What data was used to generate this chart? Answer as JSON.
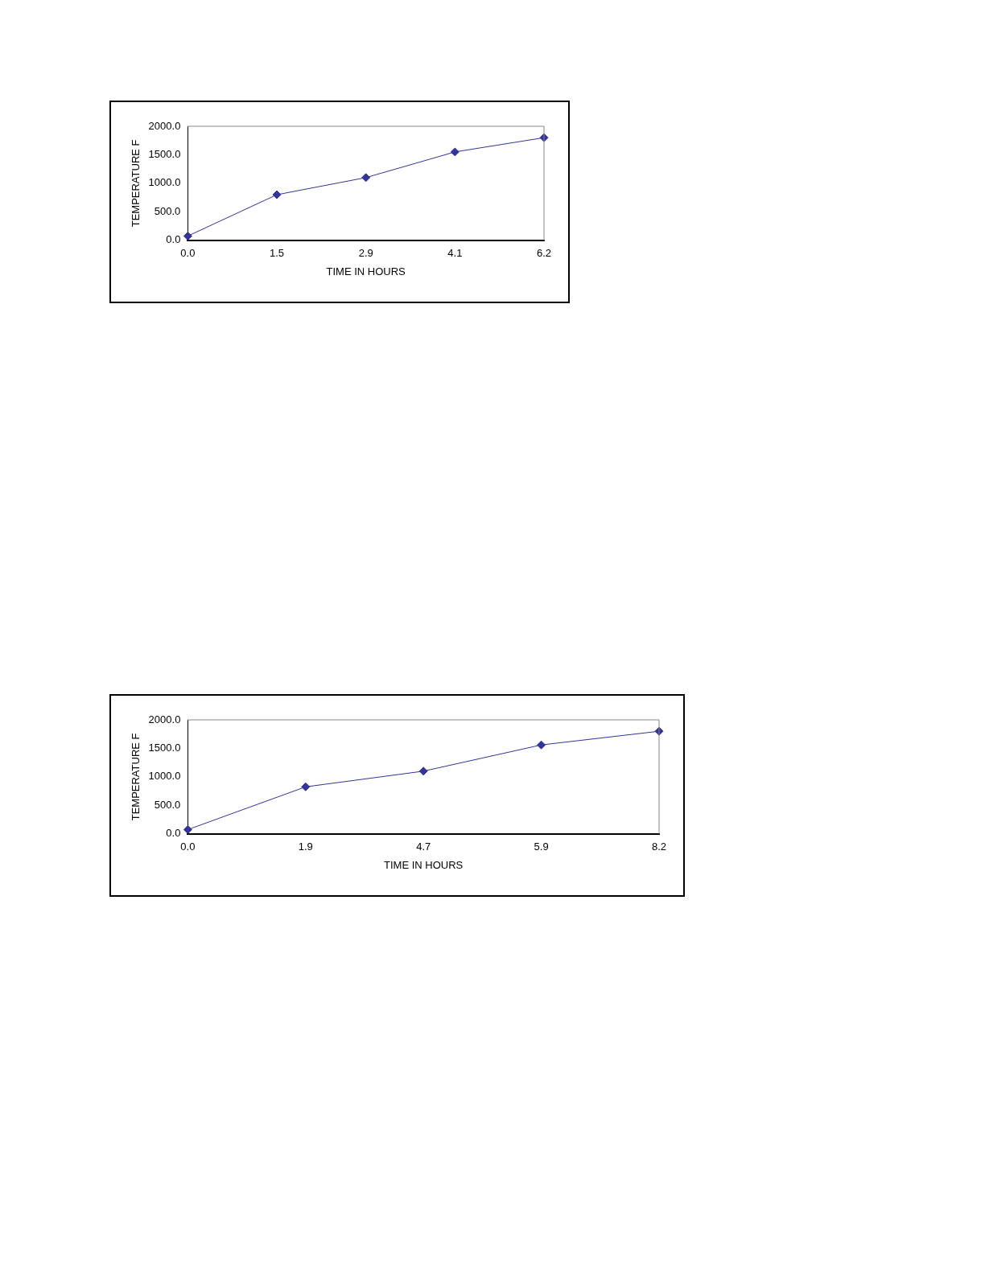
{
  "chart_data": [
    {
      "type": "line",
      "categories": [
        "0.0",
        "1.5",
        "2.9",
        "4.1",
        "6.2"
      ],
      "xlabel": "TIME IN HOURS",
      "ylabel": "TEMPERATURE F",
      "series": [
        {
          "color": "#333399",
          "values": [
            75,
            800,
            1100,
            1550,
            1800
          ]
        }
      ],
      "ylim": [
        0,
        2000
      ],
      "yticks": [
        {
          "value": 0,
          "label": "0.0"
        },
        {
          "value": 500,
          "label": "500.0"
        },
        {
          "value": 1000,
          "label": "1000.0"
        },
        {
          "value": 1500,
          "label": "1500.0"
        },
        {
          "value": 2000,
          "label": "2000.0"
        }
      ],
      "marker": "diamond",
      "legend": false
    },
    {
      "type": "line",
      "categories": [
        "0.0",
        "1.9",
        "4.7",
        "5.9",
        "8.2"
      ],
      "xlabel": "TIME IN HOURS",
      "ylabel": "TEMPERATURE F",
      "series": [
        {
          "color": "#333399",
          "values": [
            75,
            825,
            1100,
            1560,
            1800
          ]
        }
      ],
      "ylim": [
        0,
        2000
      ],
      "yticks": [
        {
          "value": 0,
          "label": "0.0"
        },
        {
          "value": 500,
          "label": "500.0"
        },
        {
          "value": 1000,
          "label": "1000.0"
        },
        {
          "value": 1500,
          "label": "1500.0"
        },
        {
          "value": 2000,
          "label": "2000.0"
        }
      ],
      "marker": "diamond",
      "legend": false
    }
  ]
}
